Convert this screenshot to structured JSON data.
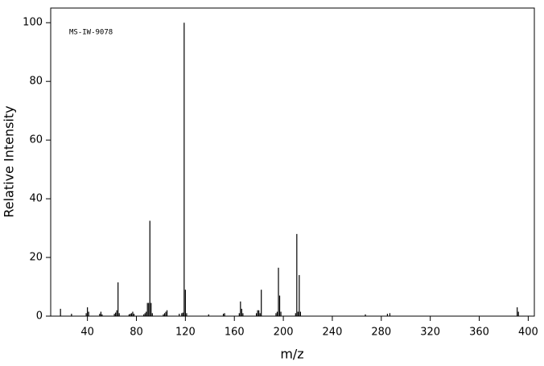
{
  "chart_data": {
    "type": "stem",
    "annotation": "MS-IW-9078",
    "x_label": "m/z",
    "y_label": "Relative Intensity",
    "color": "#000000",
    "x": [
      18,
      27,
      39,
      40,
      41,
      50,
      51,
      52,
      62,
      63,
      64,
      65,
      66,
      74,
      75,
      76,
      77,
      78,
      86,
      87,
      88,
      89,
      90,
      91,
      92,
      93,
      102,
      103,
      104,
      105,
      115,
      117,
      118,
      119,
      120,
      121,
      139,
      151,
      152,
      164,
      165,
      166,
      167,
      178,
      179,
      180,
      181,
      182,
      194,
      195,
      196,
      197,
      198,
      210,
      211,
      212,
      213,
      214,
      267,
      285,
      287,
      391,
      392
    ],
    "values": [
      2.5,
      0.8,
      1,
      3,
      1.5,
      0.8,
      1.5,
      0.6,
      0.8,
      1.2,
      2,
      11.5,
      1,
      0.6,
      0.8,
      1,
      1.5,
      0.8,
      0.6,
      1,
      1.5,
      4.5,
      4.5,
      32.5,
      4.5,
      1,
      0.6,
      1,
      1.5,
      2,
      0.8,
      1,
      1.2,
      100,
      9,
      1,
      0.6,
      0.8,
      1,
      1,
      5,
      2.5,
      1,
      1,
      2,
      2,
      1,
      9,
      1,
      1.5,
      16.5,
      7,
      1.5,
      1,
      28,
      1.5,
      14,
      1.5,
      0.6,
      0.8,
      1,
      3,
      1.5
    ],
    "xlim": [
      10,
      405
    ],
    "ylim": [
      0,
      105
    ],
    "xticks": [
      40,
      80,
      120,
      160,
      200,
      240,
      280,
      320,
      360,
      400
    ],
    "yticks": [
      0,
      20,
      40,
      60,
      80,
      100
    ]
  }
}
